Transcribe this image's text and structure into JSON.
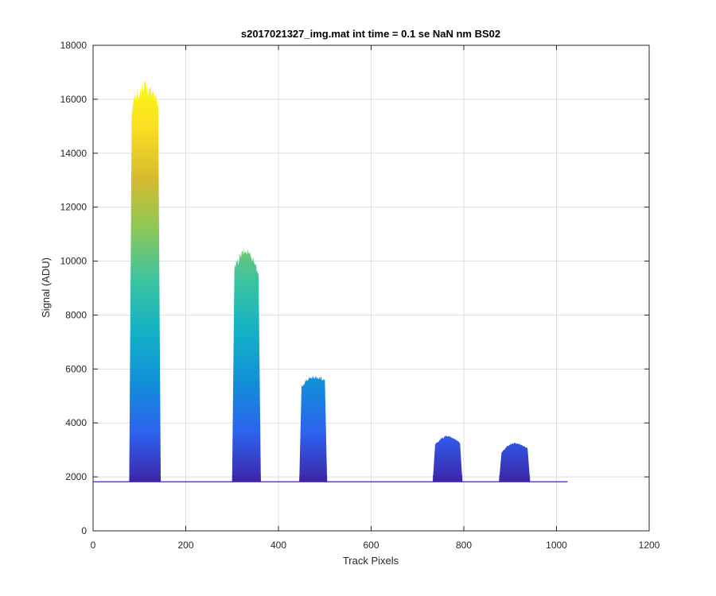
{
  "chart_data": {
    "type": "area",
    "title": "s2017021327_img.mat int time = 0.1 se  NaN nm BS02",
    "xlabel": "Track Pixels",
    "ylabel": "Signal (ADU)",
    "xlim": [
      0,
      1200
    ],
    "ylim": [
      0,
      18000
    ],
    "xticks": [
      0,
      200,
      400,
      600,
      800,
      1000,
      1200
    ],
    "yticks": [
      0,
      2000,
      4000,
      6000,
      8000,
      10000,
      12000,
      14000,
      16000,
      18000
    ],
    "grid": true,
    "baseline": 1820,
    "x_extent": [
      0,
      1024
    ],
    "colormap": [
      "#3e26a8",
      "#2c63f0",
      "#1190d8",
      "#14b2c5",
      "#3cc3a0",
      "#8cc85a",
      "#d6bb2e",
      "#fbdd23",
      "#f9fb0e"
    ],
    "colormap_range": [
      1800,
      16800
    ],
    "peaks": [
      {
        "x_start": 78,
        "x_end": 146,
        "edge_start": 1855,
        "top_start": 15700,
        "top_mid": 16400,
        "top_end": 15900,
        "edge_end": 1860
      },
      {
        "x_start": 300,
        "x_end": 362,
        "edge_start": 1850,
        "top_start": 9700,
        "top_mid": 10350,
        "top_end": 9550,
        "edge_end": 1855
      },
      {
        "x_start": 445,
        "x_end": 505,
        "edge_start": 1840,
        "top_start": 5350,
        "top_mid": 5700,
        "top_end": 5600,
        "edge_end": 1840
      },
      {
        "x_start": 733,
        "x_end": 797,
        "edge_start": 1830,
        "top_start": 3200,
        "top_mid": 3500,
        "top_end": 3250,
        "edge_end": 1830
      },
      {
        "x_start": 876,
        "x_end": 943,
        "edge_start": 1830,
        "top_start": 2900,
        "top_mid": 3250,
        "top_end": 3050,
        "edge_end": 1830
      }
    ]
  }
}
